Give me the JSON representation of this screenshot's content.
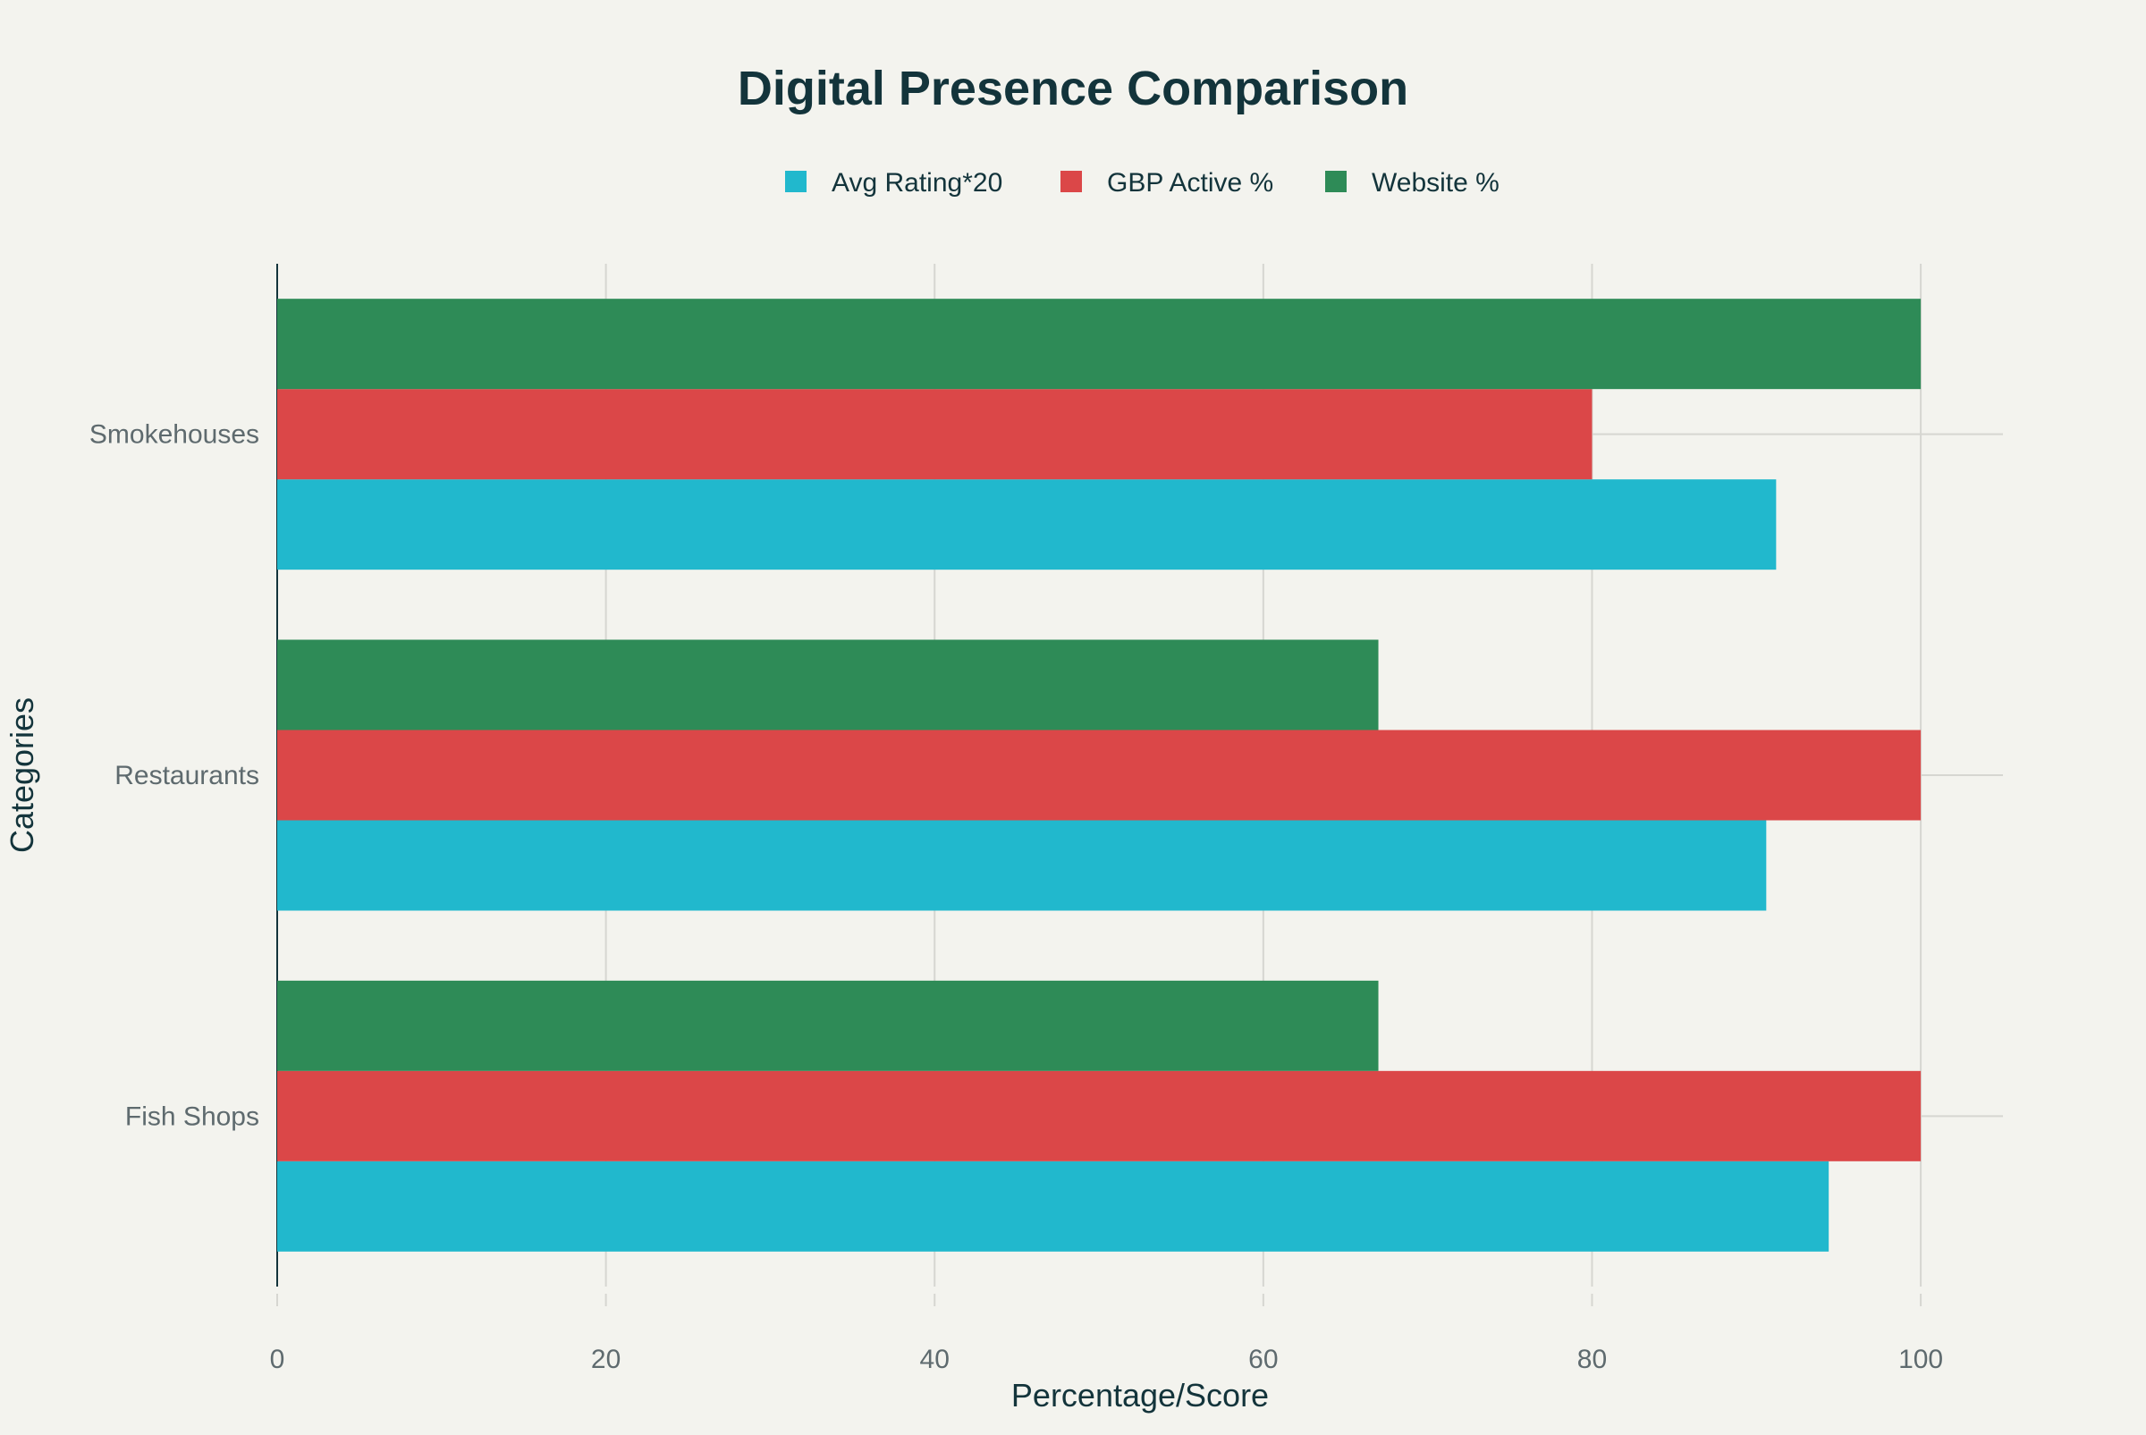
{
  "chart_data": {
    "type": "bar",
    "orientation": "horizontal",
    "title": "Digital Presence Comparison",
    "xlabel": "Percentage/Score",
    "ylabel": "Categories",
    "categories": [
      "Fish Shops",
      "Restaurants",
      "Smokehouses"
    ],
    "series": [
      {
        "name": "Avg Rating*20",
        "color": "#21b8cd",
        "values": [
          94.4,
          90.6,
          91.2
        ]
      },
      {
        "name": "GBP Active %",
        "color": "#db4748",
        "values": [
          100,
          100,
          80
        ]
      },
      {
        "name": "Website %",
        "color": "#2e8b57",
        "values": [
          67,
          67,
          100
        ]
      }
    ],
    "xlim": [
      0,
      105
    ],
    "xticks": [
      0,
      20,
      40,
      60,
      80,
      100
    ],
    "grid": true,
    "legend_position": "top-center",
    "background": "#f3f3ee",
    "text_color": "#13343b"
  }
}
